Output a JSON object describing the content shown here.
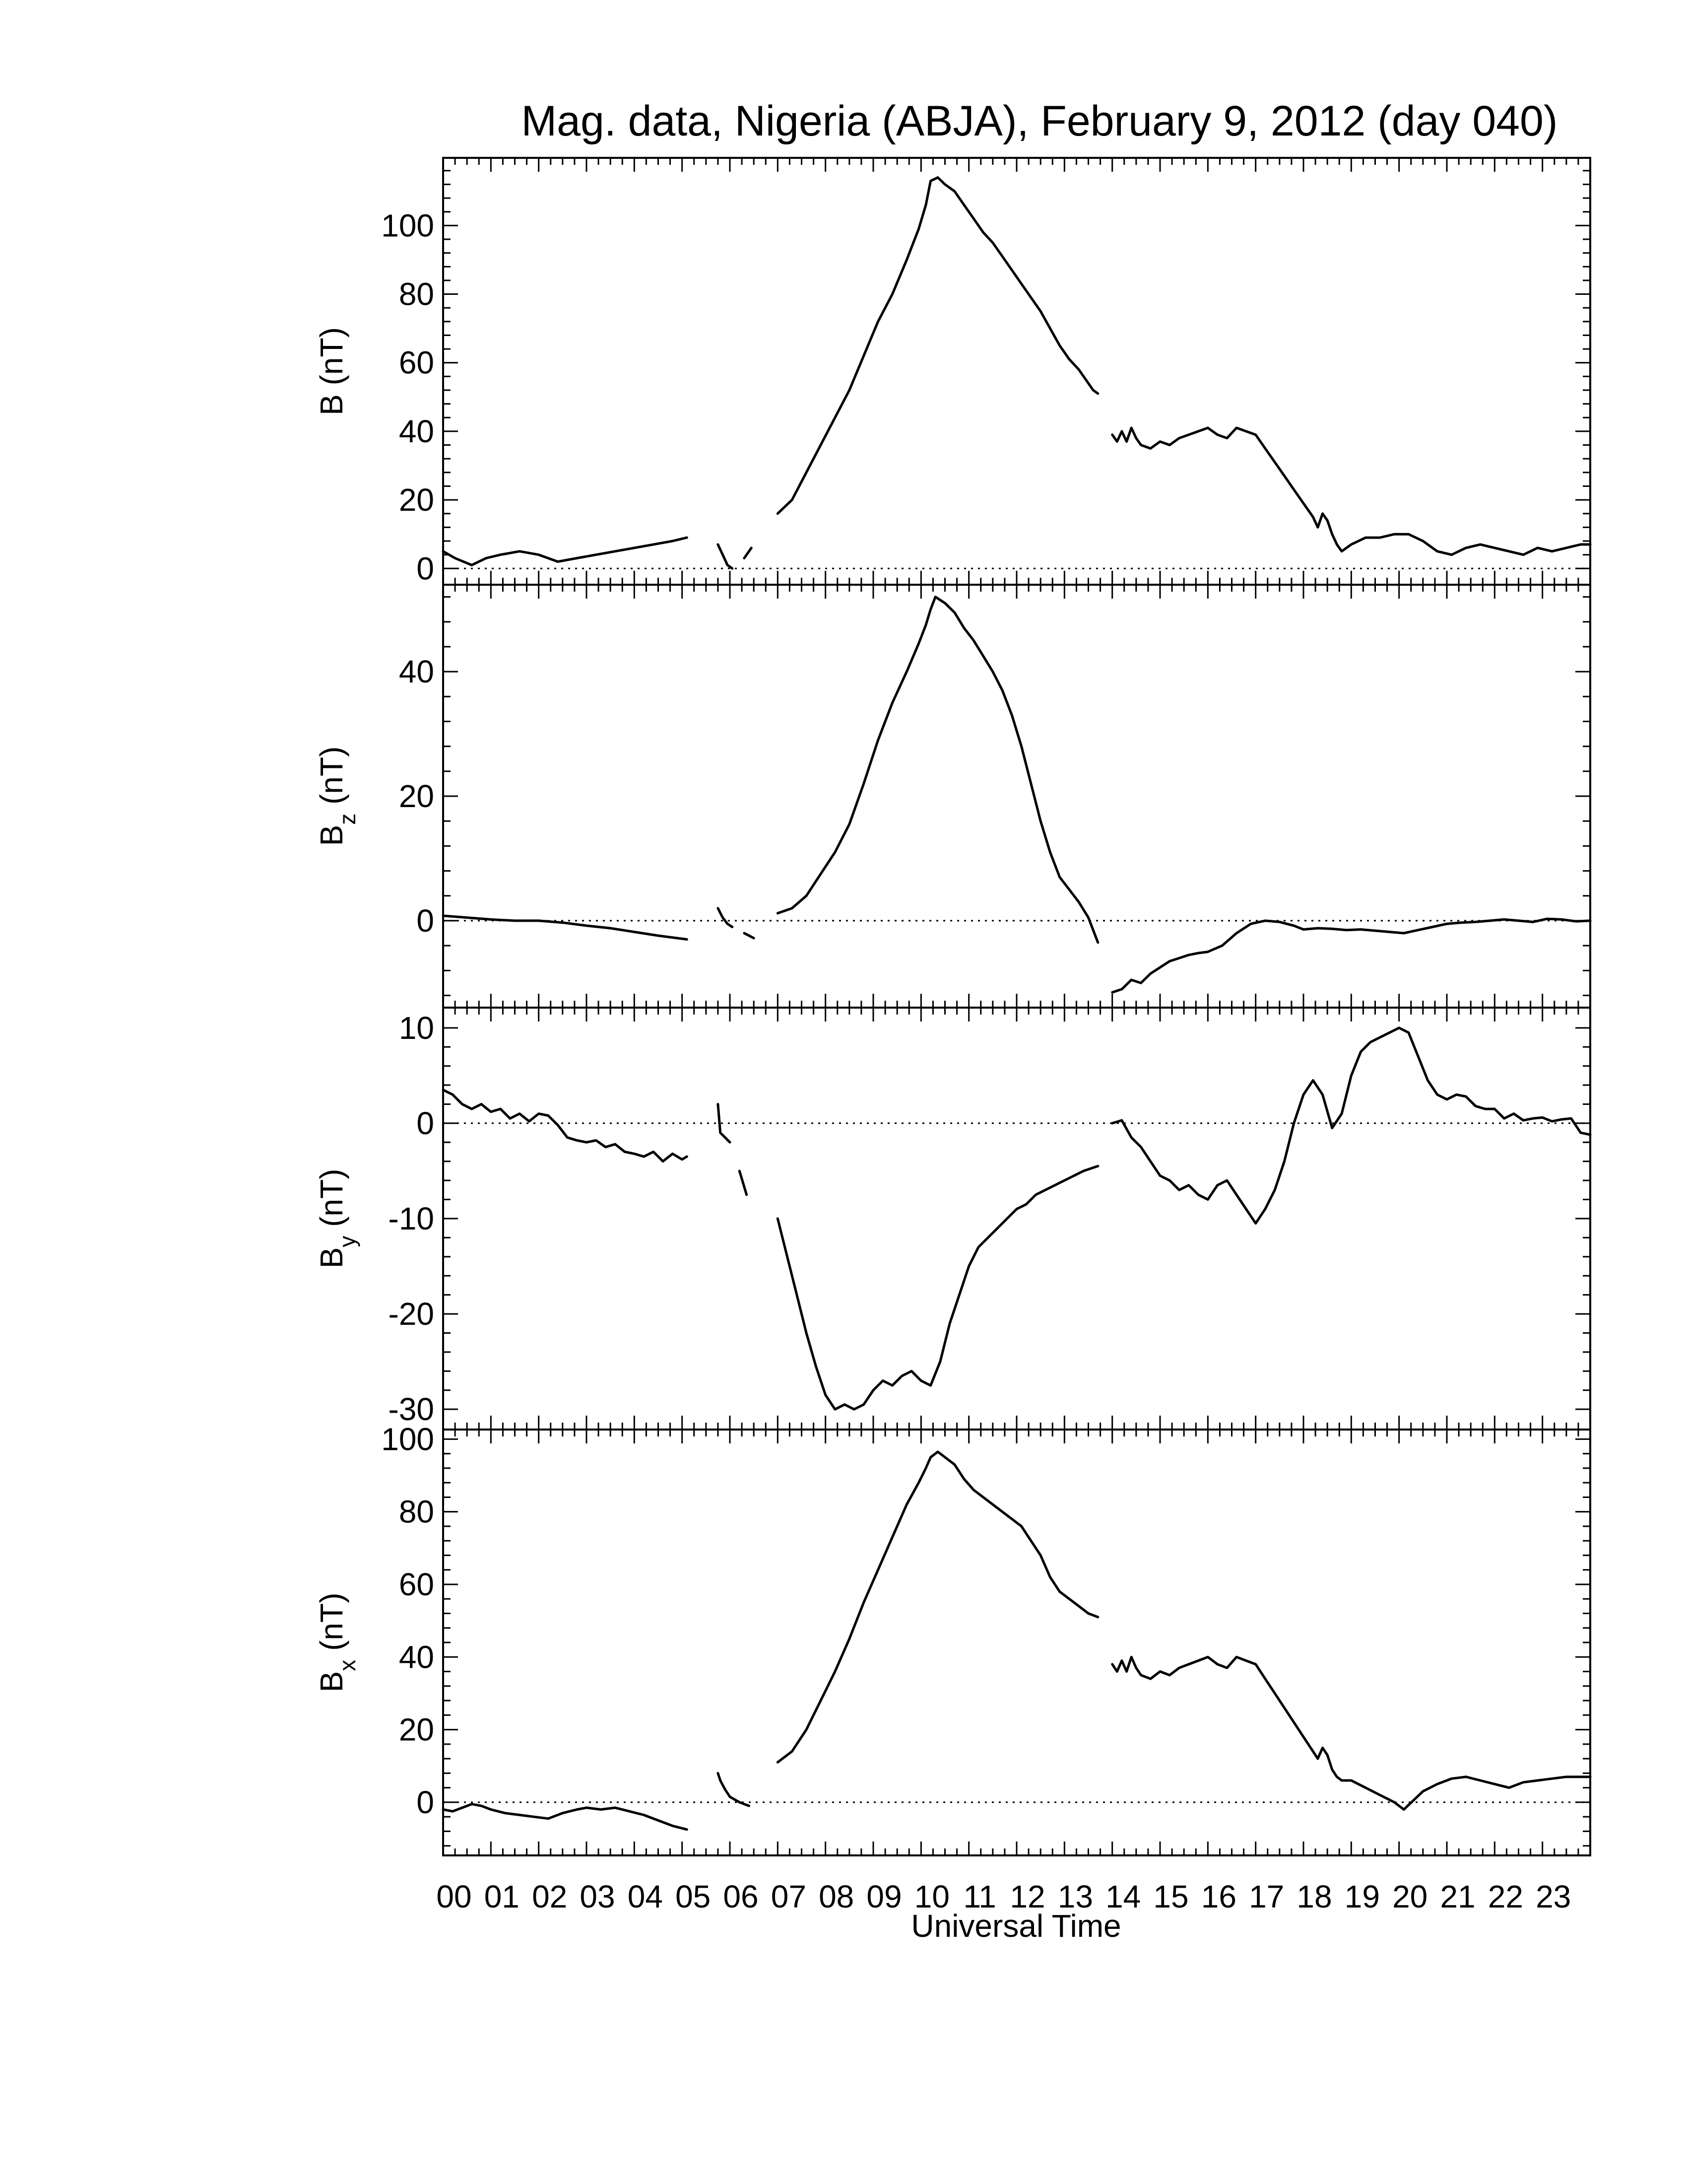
{
  "chart_data": {
    "type": "line",
    "title": "Mag. data, Nigeria (ABJA), February 9, 2012 (day 040)",
    "xlabel": "Universal Time",
    "xlim": [
      0,
      24
    ],
    "x_tick_labels": [
      "00",
      "01",
      "02",
      "03",
      "04",
      "05",
      "06",
      "07",
      "08",
      "09",
      "10",
      "11",
      "12",
      "13",
      "14",
      "15",
      "16",
      "17",
      "18",
      "19",
      "20",
      "21",
      "22",
      "23"
    ],
    "colors": {
      "line": "#000000",
      "background": "#ffffff"
    },
    "panels": [
      {
        "id": "B",
        "ylabel": "B (nT)",
        "ylabel_main": "B (nT)",
        "ylabel_sub": "",
        "ylabel_tail": "",
        "ylim": [
          -3,
          118
        ],
        "yticks": [
          0,
          20,
          40,
          60,
          80,
          100
        ],
        "zero_line": true,
        "segments": [
          {
            "x": [
              0.0,
              0.25,
              0.6,
              0.9,
              1.2,
              1.6,
              2.0,
              2.4,
              2.8,
              3.2,
              3.6,
              4.0,
              4.4,
              4.8,
              5.1
            ],
            "y": [
              5,
              3,
              1,
              3,
              4,
              5,
              4,
              2,
              3,
              4,
              5,
              6,
              7,
              8,
              9
            ]
          },
          {
            "x": [
              5.75,
              5.85,
              5.95,
              6.05
            ],
            "y": [
              7,
              4,
              1,
              0
            ]
          },
          {
            "x": [
              6.3,
              6.45
            ],
            "y": [
              3,
              6
            ]
          },
          {
            "x": [
              7.0,
              7.3,
              7.6,
              7.9,
              8.2,
              8.5,
              8.8,
              9.1,
              9.4,
              9.7,
              9.95,
              10.1,
              10.2,
              10.35,
              10.5,
              10.7,
              10.9,
              11.1,
              11.3,
              11.5,
              11.7,
              11.9,
              12.1,
              12.3,
              12.5,
              12.7,
              12.9,
              13.1,
              13.3,
              13.5,
              13.6,
              13.7
            ],
            "y": [
              16,
              20,
              28,
              36,
              44,
              52,
              62,
              72,
              80,
              90,
              99,
              106,
              113,
              114,
              112,
              110,
              106,
              102,
              98,
              95,
              91,
              87,
              83,
              79,
              75,
              70,
              65,
              61,
              58,
              54,
              52,
              51
            ]
          },
          {
            "x": [
              14.0,
              14.1,
              14.2,
              14.3,
              14.4,
              14.5,
              14.6,
              14.8,
              15.0,
              15.2,
              15.4,
              15.6,
              15.8,
              16.0,
              16.2,
              16.4,
              16.6,
              16.8,
              17.0,
              17.2,
              17.4,
              17.6,
              17.8,
              18.0,
              18.2,
              18.3,
              18.4,
              18.5,
              18.6,
              18.7,
              18.8,
              19.0,
              19.3,
              19.6,
              19.9,
              20.2,
              20.5,
              20.8,
              21.1,
              21.4,
              21.7,
              22.0,
              22.3,
              22.6,
              22.9,
              23.2,
              23.5,
              23.8,
              24.0
            ],
            "y": [
              39,
              37,
              40,
              37,
              41,
              38,
              36,
              35,
              37,
              36,
              38,
              39,
              40,
              41,
              39,
              38,
              41,
              40,
              39,
              35,
              31,
              27,
              23,
              19,
              15,
              12,
              16,
              14,
              10,
              7,
              5,
              7,
              9,
              9,
              10,
              10,
              8,
              5,
              4,
              6,
              7,
              6,
              5,
              4,
              6,
              5,
              6,
              7,
              7
            ]
          }
        ]
      },
      {
        "id": "Bz",
        "ylabel": "Bz (nT)",
        "ylabel_main": "B",
        "ylabel_sub": "z",
        "ylabel_tail": " (nT)",
        "ylim": [
          -13,
          53
        ],
        "yticks": [
          0,
          20,
          40
        ],
        "zero_line": true,
        "segments": [
          {
            "x": [
              0.0,
              0.5,
              1.0,
              1.5,
              2.0,
              2.5,
              3.0,
              3.5,
              4.0,
              4.5,
              5.1
            ],
            "y": [
              0.8,
              0.5,
              0.2,
              0.0,
              0.0,
              -0.3,
              -0.8,
              -1.2,
              -1.8,
              -2.4,
              -3.0
            ]
          },
          {
            "x": [
              5.75,
              5.85,
              5.95,
              6.05
            ],
            "y": [
              2.0,
              0.5,
              -0.5,
              -1.0
            ]
          },
          {
            "x": [
              6.3,
              6.5
            ],
            "y": [
              -2.0,
              -2.8
            ]
          },
          {
            "x": [
              7.0,
              7.3,
              7.6,
              7.9,
              8.2,
              8.5,
              8.8,
              9.1,
              9.4,
              9.7,
              9.95,
              10.1,
              10.2,
              10.3,
              10.5,
              10.7,
              10.9,
              11.1,
              11.3,
              11.5,
              11.7,
              11.9,
              12.1,
              12.3,
              12.5,
              12.7,
              12.9,
              13.1,
              13.3,
              13.5,
              13.7
            ],
            "y": [
              1.2,
              2.0,
              4.0,
              7.5,
              11.0,
              15.5,
              22.0,
              29.0,
              35.0,
              40.0,
              44.5,
              47.5,
              50.0,
              52.0,
              51.0,
              49.5,
              47.0,
              45.0,
              42.5,
              40.0,
              37.0,
              33.0,
              28.0,
              22.0,
              16.0,
              11.0,
              7.0,
              5.0,
              3.0,
              0.5,
              -3.5
            ]
          },
          {
            "x": [
              14.0,
              14.2,
              14.4,
              14.6,
              14.8,
              15.0,
              15.2,
              15.4,
              15.6,
              15.8,
              16.0,
              16.3,
              16.6,
              16.9,
              17.2,
              17.5,
              17.8,
              18.0,
              18.3,
              18.6,
              18.9,
              19.2,
              19.5,
              19.8,
              20.1,
              20.4,
              20.7,
              21.0,
              21.3,
              21.6,
              21.9,
              22.2,
              22.5,
              22.8,
              23.1,
              23.4,
              23.7,
              24.0
            ],
            "y": [
              -11.5,
              -11.0,
              -9.5,
              -10.0,
              -8.5,
              -7.5,
              -6.5,
              -6.0,
              -5.5,
              -5.2,
              -5.0,
              -4.0,
              -2.0,
              -0.5,
              0.0,
              -0.2,
              -0.8,
              -1.4,
              -1.2,
              -1.3,
              -1.5,
              -1.4,
              -1.6,
              -1.8,
              -2.0,
              -1.5,
              -1.0,
              -0.5,
              -0.3,
              -0.2,
              0.0,
              0.2,
              0.0,
              -0.2,
              0.3,
              0.2,
              -0.1,
              0.0
            ]
          }
        ]
      },
      {
        "id": "By",
        "ylabel": "By (nT)",
        "ylabel_main": "B",
        "ylabel_sub": "y",
        "ylabel_tail": " (nT)",
        "ylim": [
          -31.5,
          11.5
        ],
        "yticks": [
          -30,
          -20,
          -10,
          0,
          10
        ],
        "zero_line": true,
        "segments": [
          {
            "x": [
              0.0,
              0.2,
              0.4,
              0.6,
              0.8,
              1.0,
              1.2,
              1.4,
              1.6,
              1.8,
              2.0,
              2.2,
              2.4,
              2.6,
              2.8,
              3.0,
              3.2,
              3.4,
              3.6,
              3.8,
              4.0,
              4.2,
              4.4,
              4.6,
              4.8,
              5.0,
              5.1
            ],
            "y": [
              3.5,
              3.0,
              2.0,
              1.5,
              2.0,
              1.2,
              1.5,
              0.5,
              1.0,
              0.2,
              1.0,
              0.8,
              -0.2,
              -1.5,
              -1.8,
              -2.0,
              -1.8,
              -2.5,
              -2.2,
              -3.0,
              -3.2,
              -3.5,
              -3.0,
              -4.0,
              -3.2,
              -3.8,
              -3.5
            ]
          },
          {
            "x": [
              5.75,
              5.8,
              5.9,
              6.0
            ],
            "y": [
              2.0,
              -1.0,
              -1.5,
              -2.0
            ]
          },
          {
            "x": [
              6.2,
              6.35
            ],
            "y": [
              -5.0,
              -7.5
            ]
          },
          {
            "x": [
              7.0,
              7.2,
              7.4,
              7.6,
              7.8,
              8.0,
              8.2,
              8.4,
              8.6,
              8.8,
              9.0,
              9.2,
              9.4,
              9.6,
              9.8,
              10.0,
              10.2,
              10.4,
              10.6,
              10.8,
              11.0,
              11.2,
              11.4,
              11.6,
              11.8,
              12.0,
              12.2,
              12.4,
              12.6,
              12.8,
              13.0,
              13.2,
              13.4,
              13.7
            ],
            "y": [
              -10.0,
              -14.0,
              -18.0,
              -22.0,
              -25.5,
              -28.5,
              -30.0,
              -29.5,
              -30.0,
              -29.5,
              -28.0,
              -27.0,
              -27.5,
              -26.5,
              -26.0,
              -27.0,
              -27.5,
              -25.0,
              -21.0,
              -18.0,
              -15.0,
              -13.0,
              -12.0,
              -11.0,
              -10.0,
              -9.0,
              -8.5,
              -7.5,
              -7.0,
              -6.5,
              -6.0,
              -5.5,
              -5.0,
              -4.5
            ]
          },
          {
            "x": [
              14.0,
              14.2,
              14.4,
              14.6,
              14.8,
              15.0,
              15.2,
              15.4,
              15.6,
              15.8,
              16.0,
              16.2,
              16.4,
              16.6,
              16.8,
              17.0,
              17.2,
              17.4,
              17.6,
              17.8,
              18.0,
              18.2,
              18.4,
              18.6,
              18.8,
              19.0,
              19.2,
              19.4,
              19.6,
              19.8,
              20.0,
              20.2,
              20.4,
              20.6,
              20.8,
              21.0,
              21.2,
              21.4,
              21.6,
              21.8,
              22.0,
              22.2,
              22.4,
              22.6,
              22.8,
              23.0,
              23.2,
              23.4,
              23.6,
              23.8,
              24.0
            ],
            "y": [
              0.0,
              0.3,
              -1.5,
              -2.5,
              -4.0,
              -5.5,
              -6.0,
              -7.0,
              -6.5,
              -7.5,
              -8.0,
              -6.5,
              -6.0,
              -7.5,
              -9.0,
              -10.5,
              -9.0,
              -7.0,
              -4.0,
              0.0,
              3.0,
              4.5,
              3.0,
              -0.5,
              1.0,
              5.0,
              7.5,
              8.5,
              9.0,
              9.5,
              10.0,
              9.5,
              7.0,
              4.5,
              3.0,
              2.5,
              3.0,
              2.8,
              1.8,
              1.5,
              1.5,
              0.5,
              1.0,
              0.3,
              0.5,
              0.6,
              0.2,
              0.4,
              0.5,
              -1.0,
              -1.2
            ]
          }
        ]
      },
      {
        "id": "Bx",
        "ylabel": "Bx (nT)",
        "ylabel_main": "B",
        "ylabel_sub": "x",
        "ylabel_tail": " (nT)",
        "ylim": [
          -13,
          101
        ],
        "yticks": [
          0,
          20,
          40,
          60,
          80,
          100
        ],
        "zero_line": true,
        "segments": [
          {
            "x": [
              0.0,
              0.2,
              0.4,
              0.6,
              0.8,
              1.0,
              1.3,
              1.6,
              1.9,
              2.2,
              2.5,
              2.8,
              3.0,
              3.3,
              3.6,
              3.9,
              4.2,
              4.5,
              4.8,
              5.1
            ],
            "y": [
              -2.0,
              -2.5,
              -1.5,
              -0.5,
              -1.0,
              -2.0,
              -3.0,
              -3.5,
              -4.0,
              -4.5,
              -3.0,
              -2.0,
              -1.5,
              -2.0,
              -1.5,
              -2.5,
              -3.5,
              -5.0,
              -6.5,
              -7.5
            ]
          },
          {
            "x": [
              5.75,
              5.8,
              5.9,
              6.0,
              6.2,
              6.4
            ],
            "y": [
              8.0,
              6.0,
              3.5,
              1.5,
              0.0,
              -1.0
            ]
          },
          {
            "x": [
              7.0,
              7.3,
              7.6,
              7.9,
              8.2,
              8.5,
              8.8,
              9.1,
              9.4,
              9.7,
              9.95,
              10.1,
              10.2,
              10.35,
              10.5,
              10.7,
              10.9,
              11.1,
              11.3,
              11.5,
              11.7,
              11.9,
              12.1,
              12.3,
              12.5,
              12.7,
              12.9,
              13.1,
              13.3,
              13.5,
              13.7
            ],
            "y": [
              11.0,
              14.0,
              20.0,
              28.0,
              36.0,
              45.0,
              55.0,
              64.0,
              73.0,
              82.0,
              88.0,
              92.0,
              95.0,
              96.5,
              95.0,
              93.0,
              89.0,
              86.0,
              84.0,
              82.0,
              80.0,
              78.0,
              76.0,
              72.0,
              68.0,
              62.0,
              58.0,
              56.0,
              54.0,
              52.0,
              51.0
            ]
          },
          {
            "x": [
              14.0,
              14.1,
              14.2,
              14.3,
              14.4,
              14.5,
              14.6,
              14.8,
              15.0,
              15.2,
              15.4,
              15.6,
              15.8,
              16.0,
              16.2,
              16.4,
              16.6,
              16.8,
              17.0,
              17.2,
              17.4,
              17.6,
              17.8,
              18.0,
              18.2,
              18.3,
              18.4,
              18.5,
              18.6,
              18.7,
              18.8,
              19.0,
              19.3,
              19.6,
              19.9,
              20.1,
              20.3,
              20.5,
              20.8,
              21.1,
              21.4,
              21.7,
              22.0,
              22.3,
              22.6,
              22.9,
              23.2,
              23.5,
              23.8,
              24.0
            ],
            "y": [
              38.0,
              36.0,
              39.0,
              36.0,
              40.0,
              37.0,
              35.0,
              34.0,
              36.0,
              35.0,
              37.0,
              38.0,
              39.0,
              40.0,
              38.0,
              37.0,
              40.0,
              39.0,
              38.0,
              34.0,
              30.0,
              26.0,
              22.0,
              18.0,
              14.0,
              12.0,
              15.0,
              13.0,
              9.0,
              7.0,
              6.0,
              6.0,
              4.0,
              2.0,
              0.0,
              -2.0,
              0.5,
              3.0,
              5.0,
              6.5,
              7.0,
              6.0,
              5.0,
              4.0,
              5.5,
              6.0,
              6.5,
              7.0,
              7.0,
              7.0
            ]
          }
        ]
      }
    ]
  }
}
